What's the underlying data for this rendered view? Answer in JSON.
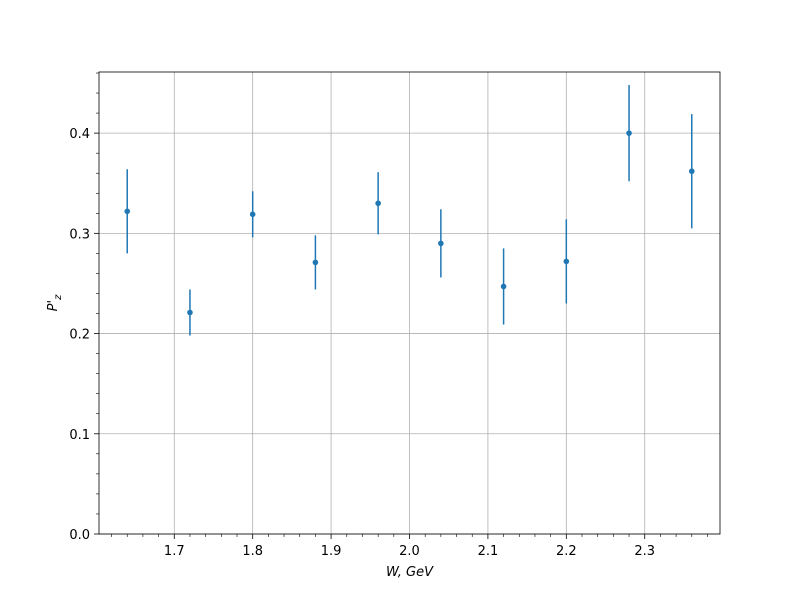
{
  "chart_data": {
    "type": "errorbar",
    "x": [
      1.64,
      1.72,
      1.8,
      1.88,
      1.96,
      2.04,
      2.12,
      2.2,
      2.28,
      2.36
    ],
    "values": [
      0.322,
      0.221,
      0.319,
      0.271,
      0.33,
      0.29,
      0.247,
      0.272,
      0.4,
      0.362
    ],
    "errors": [
      0.042,
      0.023,
      0.023,
      0.027,
      0.031,
      0.034,
      0.038,
      0.042,
      0.048,
      0.057
    ],
    "color": "#1f77b4",
    "xlabel": "W, GeV",
    "ylabel": {
      "base": "P'",
      "sub": "z"
    },
    "xlim": [
      1.604,
      2.396
    ],
    "ylim": [
      0,
      0.461
    ],
    "xticks": [
      1.7,
      1.8,
      1.9,
      {
        "value": 2.0,
        "label": "2.0"
      },
      2.1,
      2.2,
      2.3
    ],
    "yticks": [
      {
        "value": 0,
        "label": "0.0"
      },
      0.1,
      0.2,
      0.3,
      0.4
    ],
    "xminorticks": [
      1.62,
      1.64,
      1.66,
      1.68,
      1.72,
      1.74,
      1.76,
      1.78,
      1.82,
      1.84,
      1.86,
      1.88,
      1.92,
      1.94,
      1.96,
      1.98,
      2.02,
      2.04,
      2.06,
      2.08,
      2.12,
      2.14,
      2.16,
      2.18,
      2.22,
      2.24,
      2.26,
      2.28,
      2.32,
      2.34,
      2.36,
      2.38
    ],
    "yminorticks": [
      0.02,
      0.04,
      0.06,
      0.08,
      0.12,
      0.14,
      0.16,
      0.18,
      0.22,
      0.24,
      0.26,
      0.28,
      0.32,
      0.34,
      0.36,
      0.38,
      0.42,
      0.44,
      0.46
    ],
    "grid": true
  }
}
